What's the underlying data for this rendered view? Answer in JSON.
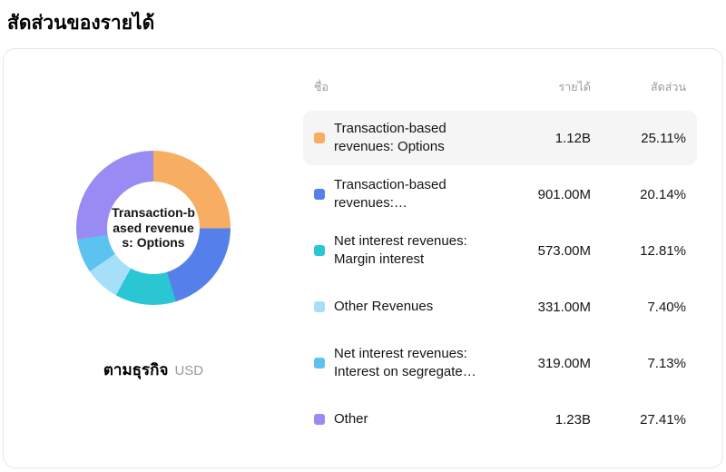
{
  "page_title": "สัดส่วนของรายได้",
  "card": {
    "chart_center_label": "Transaction-based revenues: Options",
    "chart_caption": "ตามธุรกิจ",
    "chart_caption_unit": "USD"
  },
  "table": {
    "headers": {
      "name": "ชื่อ",
      "revenue": "รายได้",
      "share": "สัดส่วน"
    },
    "rows": [
      {
        "name": "Transaction-based revenues: Options",
        "revenue": "1.12B",
        "share": "25.11%",
        "color": "#f7ae63",
        "highlighted": true
      },
      {
        "name": "Transaction-based revenues:…",
        "revenue": "901.00M",
        "share": "20.14%",
        "color": "#5580ea",
        "highlighted": false
      },
      {
        "name": "Net interest revenues: Margin interest",
        "revenue": "573.00M",
        "share": "12.81%",
        "color": "#2bc6d4",
        "highlighted": false
      },
      {
        "name": "Other Revenues",
        "revenue": "331.00M",
        "share": "7.40%",
        "color": "#a5dff9",
        "highlighted": false
      },
      {
        "name": "Net interest revenues: Interest on segregate…",
        "revenue": "319.00M",
        "share": "7.13%",
        "color": "#5cc3f0",
        "highlighted": false
      },
      {
        "name": "Other",
        "revenue": "1.23B",
        "share": "27.41%",
        "color": "#988cf4",
        "highlighted": false
      }
    ]
  },
  "chart_data": {
    "type": "pie",
    "title": "สัดส่วนของรายได้",
    "subtitle": "ตามธุรกิจ (USD)",
    "categories": [
      "Transaction-based revenues: Options",
      "Transaction-based revenues:…",
      "Net interest revenues: Margin interest",
      "Other Revenues",
      "Net interest revenues: Interest on segregated…",
      "Other"
    ],
    "values": [
      25.11,
      20.14,
      12.81,
      7.4,
      7.13,
      27.41
    ],
    "revenues_display": [
      "1.12B",
      "901.00M",
      "573.00M",
      "331.00M",
      "319.00M",
      "1.23B"
    ],
    "revenues_numeric_millions": [
      1120,
      901,
      573,
      331,
      319,
      1230
    ],
    "colors": [
      "#f7ae63",
      "#5580ea",
      "#2bc6d4",
      "#a5dff9",
      "#5cc3f0",
      "#988cf4"
    ],
    "total": 100,
    "donut": true,
    "start_angle_deg": 0,
    "legend_position": "right-table",
    "center_label": "Transaction-based revenues: Options"
  }
}
